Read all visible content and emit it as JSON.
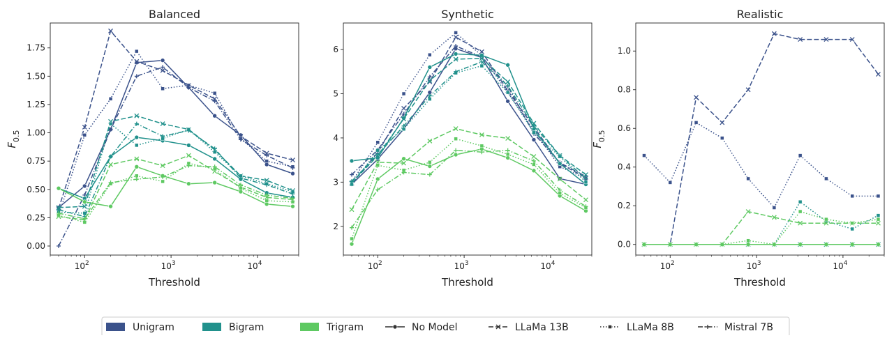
{
  "legend_items": [
    {
      "label": "Unigram",
      "kind": "patch",
      "color": "#3b528b"
    },
    {
      "label": "Bigram",
      "kind": "patch",
      "color": "#21918c"
    },
    {
      "label": "Trigram",
      "kind": "patch",
      "color": "#5ec962"
    },
    {
      "label": "No Model",
      "kind": "line",
      "dash": "solid",
      "marker": "circle"
    },
    {
      "label": "LLaMa 13B",
      "kind": "line",
      "dash": "dashed",
      "marker": "x"
    },
    {
      "label": "LLaMa 8B",
      "kind": "line",
      "dash": "dotted",
      "marker": "square"
    },
    {
      "label": "Mistral 7B",
      "kind": "line",
      "dash": "dashdot",
      "marker": "plus"
    }
  ],
  "chart_data": [
    {
      "type": "line",
      "title": "Balanced",
      "xlabel": "Threshold",
      "ylabel": "F0.5",
      "xscale": "log",
      "xlim": [
        40,
        30000
      ],
      "ylim": [
        -0.08,
        1.97
      ],
      "yticks": [
        "0.00",
        "0.25",
        "0.50",
        "0.75",
        "1.00",
        "1.25",
        "1.50",
        "1.75"
      ],
      "x": [
        50,
        100,
        200,
        400,
        800,
        1600,
        3200,
        6400,
        12800,
        25600
      ],
      "series": [
        {
          "group": "Unigram",
          "model": "No Model",
          "color": "#3b528b",
          "values": [
            0.34,
            0.53,
            1.03,
            1.62,
            1.64,
            1.4,
            1.15,
            0.98,
            0.72,
            0.64
          ]
        },
        {
          "group": "Unigram",
          "model": "LLaMa 13B",
          "color": "#3b528b",
          "values": [
            0.33,
            1.05,
            1.9,
            1.63,
            1.55,
            1.42,
            1.3,
            0.97,
            0.82,
            0.76
          ]
        },
        {
          "group": "Unigram",
          "model": "LLaMa 8B",
          "color": "#3b528b",
          "values": [
            0.27,
            0.98,
            1.3,
            1.72,
            1.39,
            1.42,
            1.35,
            0.95,
            0.75,
            0.7
          ]
        },
        {
          "group": "Unigram",
          "model": "Mistral 7B",
          "color": "#3b528b",
          "values": [
            0.0,
            0.45,
            1.03,
            1.5,
            1.58,
            1.4,
            1.28,
            0.94,
            0.8,
            0.69
          ]
        },
        {
          "group": "Bigram",
          "model": "No Model",
          "color": "#21918c",
          "values": [
            0.51,
            0.42,
            0.79,
            0.96,
            0.93,
            0.89,
            0.77,
            0.59,
            0.47,
            0.43
          ]
        },
        {
          "group": "Bigram",
          "model": "LLaMa 13B",
          "color": "#21918c",
          "values": [
            0.34,
            0.35,
            1.1,
            1.15,
            1.08,
            1.03,
            0.85,
            0.62,
            0.58,
            0.49
          ]
        },
        {
          "group": "Bigram",
          "model": "LLaMa 8B",
          "color": "#21918c",
          "values": [
            0.3,
            0.29,
            1.08,
            0.89,
            0.95,
            1.03,
            0.83,
            0.62,
            0.55,
            0.48
          ]
        },
        {
          "group": "Bigram",
          "model": "Mistral 7B",
          "color": "#21918c",
          "values": [
            0.32,
            0.26,
            0.79,
            1.08,
            0.97,
            1.02,
            0.86,
            0.6,
            0.54,
            0.46
          ]
        },
        {
          "group": "Trigram",
          "model": "No Model",
          "color": "#5ec962",
          "values": [
            0.51,
            0.39,
            0.35,
            0.7,
            0.62,
            0.55,
            0.56,
            0.48,
            0.37,
            0.35
          ]
        },
        {
          "group": "Trigram",
          "model": "LLaMa 13B",
          "color": "#5ec962",
          "values": [
            0.26,
            0.23,
            0.72,
            0.77,
            0.71,
            0.8,
            0.66,
            0.52,
            0.43,
            0.41
          ]
        },
        {
          "group": "Trigram",
          "model": "LLaMa 8B",
          "color": "#5ec962",
          "values": [
            0.27,
            0.21,
            0.55,
            0.62,
            0.57,
            0.73,
            0.68,
            0.51,
            0.4,
            0.39
          ]
        },
        {
          "group": "Trigram",
          "model": "Mistral 7B",
          "color": "#5ec962",
          "values": [
            0.29,
            0.24,
            0.56,
            0.59,
            0.61,
            0.71,
            0.7,
            0.54,
            0.45,
            0.42
          ]
        }
      ]
    },
    {
      "type": "line",
      "title": "Synthetic",
      "xlabel": "Threshold",
      "ylabel": "",
      "xscale": "log",
      "xlim": [
        40,
        30000
      ],
      "ylim": [
        1.35,
        6.6
      ],
      "yticks": [
        "2",
        "3",
        "4",
        "5",
        "6"
      ],
      "x": [
        50,
        100,
        200,
        400,
        800,
        1600,
        3200,
        6400,
        12800,
        25600
      ],
      "series": [
        {
          "group": "Unigram",
          "model": "No Model",
          "color": "#3b528b",
          "values": [
            2.95,
            3.52,
            4.2,
            5.03,
            6.02,
            5.82,
            4.83,
            3.96,
            3.08,
            2.95
          ]
        },
        {
          "group": "Unigram",
          "model": "LLaMa 13B",
          "color": "#3b528b",
          "values": [
            2.97,
            3.67,
            4.67,
            5.27,
            6.28,
            5.95,
            5.07,
            4.25,
            3.42,
            3.1
          ]
        },
        {
          "group": "Unigram",
          "model": "LLaMa 8B",
          "color": "#3b528b",
          "values": [
            3.0,
            3.9,
            5.0,
            5.88,
            6.38,
            5.86,
            5.03,
            4.17,
            3.35,
            3.08
          ]
        },
        {
          "group": "Unigram",
          "model": "Mistral 7B",
          "color": "#3b528b",
          "values": [
            3.17,
            3.73,
            4.54,
            5.38,
            6.08,
            5.83,
            5.17,
            4.1,
            3.44,
            3.13
          ]
        },
        {
          "group": "Bigram",
          "model": "No Model",
          "color": "#21918c",
          "values": [
            3.48,
            3.55,
            4.45,
            5.6,
            5.9,
            5.87,
            5.65,
            4.2,
            3.42,
            2.95
          ]
        },
        {
          "group": "Bigram",
          "model": "LLaMa 13B",
          "color": "#21918c",
          "values": [
            2.98,
            3.6,
            4.43,
            5.3,
            5.78,
            5.8,
            5.27,
            4.33,
            3.6,
            3.17
          ]
        },
        {
          "group": "Bigram",
          "model": "LLaMa 8B",
          "color": "#21918c",
          "values": [
            2.95,
            3.72,
            4.2,
            4.88,
            5.47,
            5.63,
            5.03,
            4.12,
            3.58,
            3.0
          ]
        },
        {
          "group": "Bigram",
          "model": "Mistral 7B",
          "color": "#21918c",
          "values": [
            3.02,
            3.62,
            4.27,
            4.95,
            5.5,
            5.72,
            5.18,
            4.27,
            3.6,
            3.08
          ]
        },
        {
          "group": "Trigram",
          "model": "No Model",
          "color": "#5ec962",
          "values": [
            1.6,
            3.07,
            3.53,
            3.36,
            3.62,
            3.75,
            3.55,
            3.26,
            2.69,
            2.35
          ]
        },
        {
          "group": "Trigram",
          "model": "LLaMa 13B",
          "color": "#5ec962",
          "values": [
            2.38,
            3.45,
            3.43,
            3.93,
            4.21,
            4.07,
            3.99,
            3.58,
            3.07,
            2.6
          ]
        },
        {
          "group": "Trigram",
          "model": "LLaMa 8B",
          "color": "#5ec962",
          "values": [
            1.72,
            3.38,
            3.27,
            3.45,
            3.98,
            3.82,
            3.63,
            3.4,
            2.75,
            2.42
          ]
        },
        {
          "group": "Trigram",
          "model": "Mistral 7B",
          "color": "#5ec962",
          "values": [
            1.97,
            2.83,
            3.22,
            3.17,
            3.72,
            3.68,
            3.72,
            3.48,
            2.82,
            2.45
          ]
        }
      ]
    },
    {
      "type": "line",
      "title": "Realistic",
      "xlabel": "Threshold",
      "ylabel": "F0.5",
      "xscale": "log",
      "xlim": [
        40,
        30000
      ],
      "ylim": [
        -0.055,
        1.145
      ],
      "yticks": [
        "0.0",
        "0.2",
        "0.4",
        "0.6",
        "0.8",
        "1.0"
      ],
      "x": [
        50,
        100,
        200,
        400,
        800,
        1600,
        3200,
        6400,
        12800,
        25600
      ],
      "series": [
        {
          "group": "Unigram",
          "model": "No Model",
          "color": "#3b528b",
          "values": [
            0,
            0,
            0,
            0,
            0,
            0,
            0,
            0,
            0,
            0
          ]
        },
        {
          "group": "Unigram",
          "model": "LLaMa 13B",
          "color": "#3b528b",
          "values": [
            0,
            0,
            0.76,
            0.63,
            0.8,
            1.09,
            1.06,
            1.06,
            1.06,
            0.88
          ]
        },
        {
          "group": "Unigram",
          "model": "LLaMa 8B",
          "color": "#3b528b",
          "values": [
            0.46,
            0.32,
            0.63,
            0.55,
            0.34,
            0.19,
            0.46,
            0.34,
            0.25,
            0.25
          ]
        },
        {
          "group": "Unigram",
          "model": "Mistral 7B",
          "color": "#3b528b",
          "values": [
            0,
            0,
            0,
            0,
            0,
            0,
            0,
            0,
            0,
            0
          ]
        },
        {
          "group": "Bigram",
          "model": "No Model",
          "color": "#21918c",
          "values": [
            0,
            0,
            0,
            0,
            0,
            0,
            0,
            0,
            0,
            0
          ]
        },
        {
          "group": "Bigram",
          "model": "LLaMa 13B",
          "color": "#21918c",
          "values": [
            0,
            0,
            0,
            0,
            0,
            0,
            0,
            0,
            0,
            0
          ]
        },
        {
          "group": "Bigram",
          "model": "LLaMa 8B",
          "color": "#21918c",
          "values": [
            0,
            0,
            0,
            0,
            0,
            0,
            0.22,
            0.12,
            0.08,
            0.15
          ]
        },
        {
          "group": "Bigram",
          "model": "Mistral 7B",
          "color": "#21918c",
          "values": [
            0,
            0,
            0,
            0,
            0,
            0,
            0,
            0,
            0,
            0
          ]
        },
        {
          "group": "Trigram",
          "model": "No Model",
          "color": "#5ec962",
          "values": [
            0,
            0,
            0,
            0,
            0,
            0,
            0,
            0,
            0,
            0
          ]
        },
        {
          "group": "Trigram",
          "model": "LLaMa 13B",
          "color": "#5ec962",
          "values": [
            0,
            0,
            0,
            0,
            0.17,
            0.14,
            0.11,
            0.11,
            0.11,
            0.11
          ]
        },
        {
          "group": "Trigram",
          "model": "LLaMa 8B",
          "color": "#5ec962",
          "values": [
            0,
            0,
            0,
            0,
            0.02,
            0,
            0.17,
            0.13,
            0.11,
            0.13
          ]
        },
        {
          "group": "Trigram",
          "model": "Mistral 7B",
          "color": "#5ec962",
          "values": [
            0,
            0,
            0,
            0,
            0,
            0,
            0,
            0,
            0,
            0
          ]
        }
      ]
    }
  ]
}
